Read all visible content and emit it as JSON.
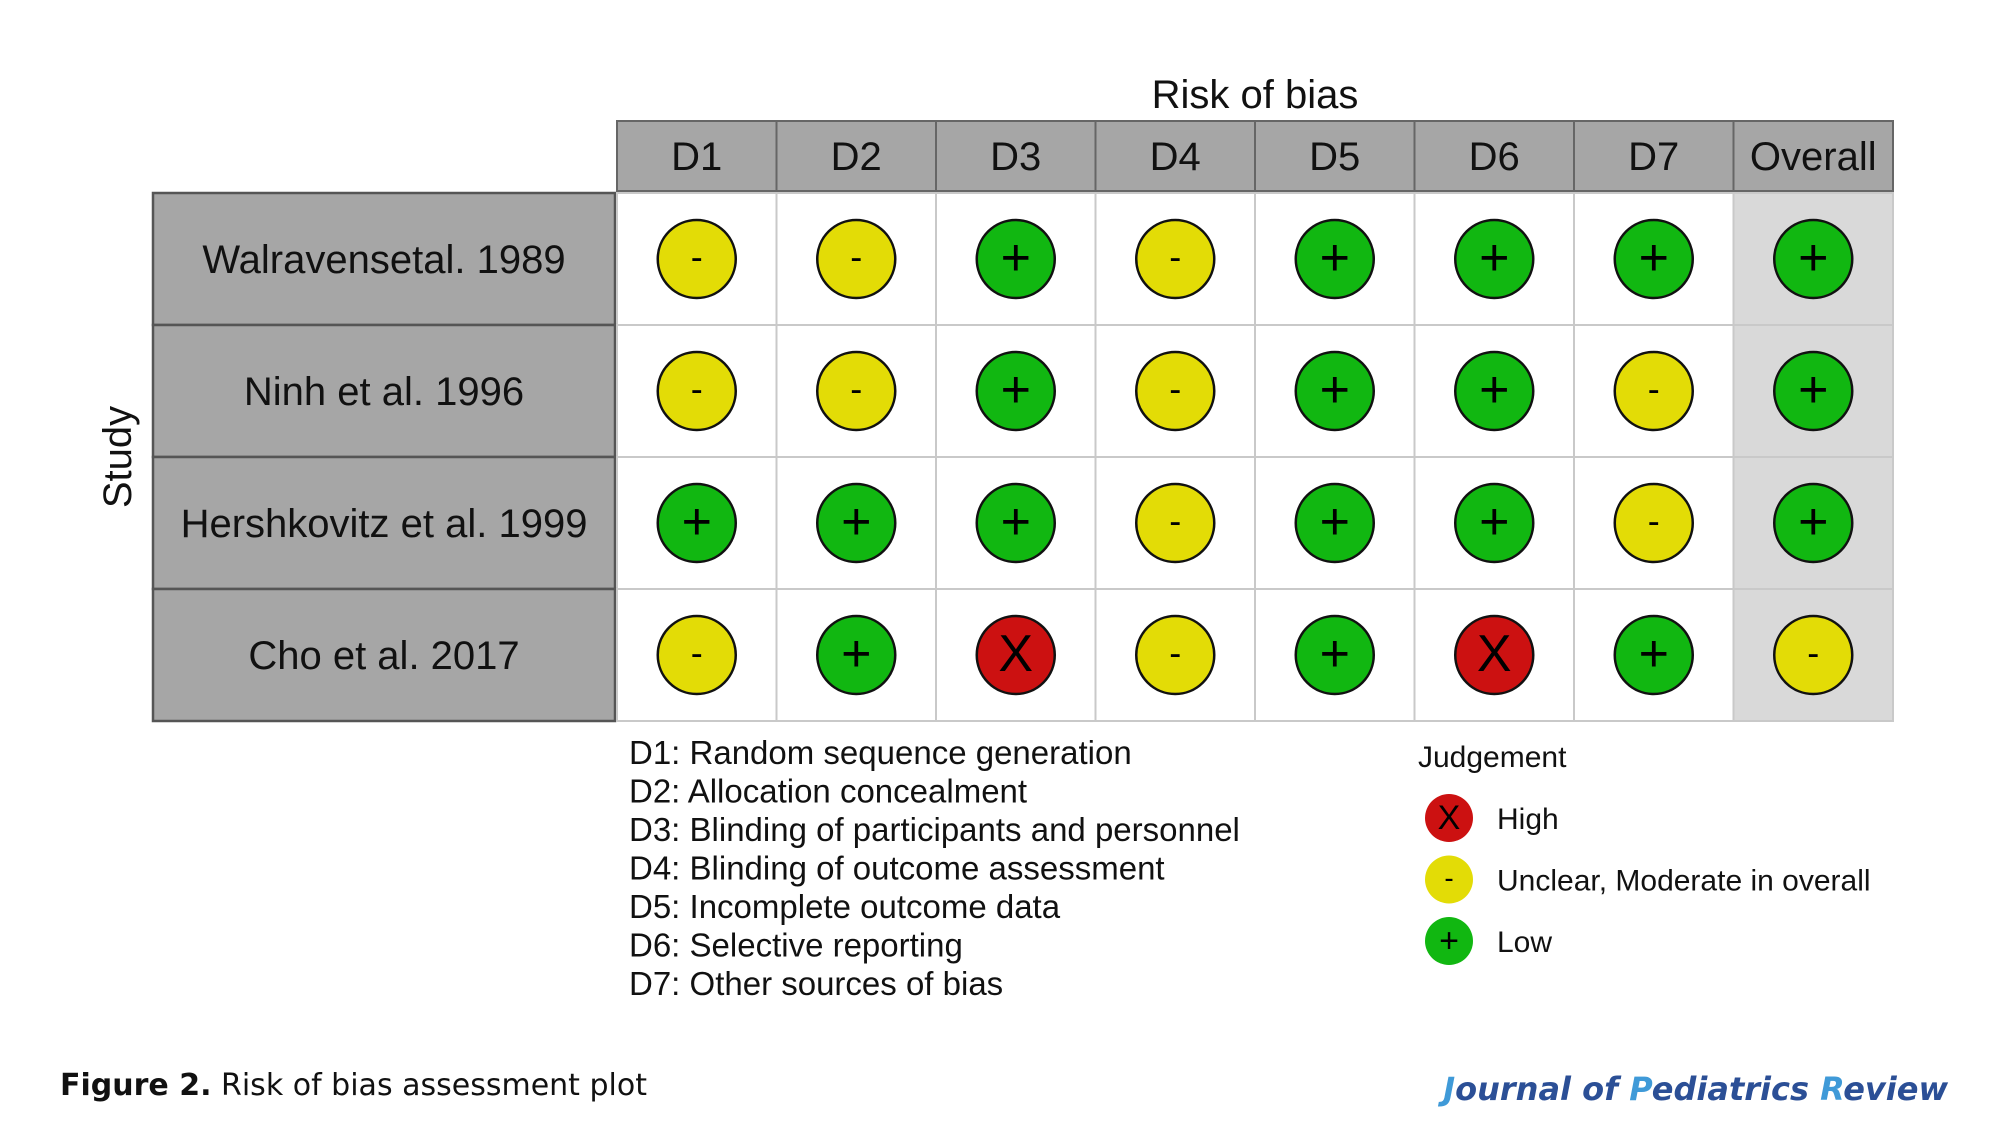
{
  "chart_data": {
    "type": "table",
    "title": "Risk of bias",
    "ylabel": "Study",
    "columns": [
      "D1",
      "D2",
      "D3",
      "D4",
      "D5",
      "D6",
      "D7",
      "Overall"
    ],
    "rows": [
      {
        "study": "Walravensetal. 1989",
        "judgements": [
          "-",
          "-",
          "+",
          "-",
          "+",
          "+",
          "+",
          "+"
        ]
      },
      {
        "study": "Ninh et al. 1996",
        "judgements": [
          "-",
          "-",
          "+",
          "-",
          "+",
          "+",
          "-",
          "+"
        ]
      },
      {
        "study": "Hershkovitz et al. 1999",
        "judgements": [
          "+",
          "+",
          "+",
          "-",
          "+",
          "+",
          "-",
          "+"
        ]
      },
      {
        "study": "Cho et al. 2017",
        "judgements": [
          "-",
          "+",
          "X",
          "-",
          "+",
          "X",
          "+",
          "-"
        ]
      }
    ],
    "domains": [
      "D1: Random sequence generation",
      "D2: Allocation concealment",
      "D3: Blinding of participants and personnel",
      "D4: Blinding of outcome assessment",
      "D5: Incomplete outcome data",
      "D6: Selective reporting",
      "D7: Other sources of bias"
    ],
    "legend": {
      "title": "Judgement",
      "items": [
        {
          "symbol": "X",
          "label": "High",
          "color": "#cc1111"
        },
        {
          "symbol": "-",
          "label": "Unclear, Moderate in overall",
          "color": "#e3dc06"
        },
        {
          "symbol": "+",
          "label": "Low",
          "color": "#11b711"
        }
      ]
    },
    "colors": {
      "header_fill": "#a6a6a6",
      "study_fill": "#a6a6a6",
      "cell_fill": "#ffffff",
      "overall_fill": "#d9d9d9"
    }
  },
  "caption": {
    "label": "Figure 2.",
    "text": " Risk of bias assessment plot"
  },
  "journal": {
    "parts": [
      {
        "text": "J",
        "accent": true
      },
      {
        "text": "ournal of ",
        "accent": false
      },
      {
        "text": "P",
        "accent": true
      },
      {
        "text": "ediatrics ",
        "accent": false
      },
      {
        "text": "R",
        "accent": true
      },
      {
        "text": "eview",
        "accent": false
      }
    ]
  }
}
